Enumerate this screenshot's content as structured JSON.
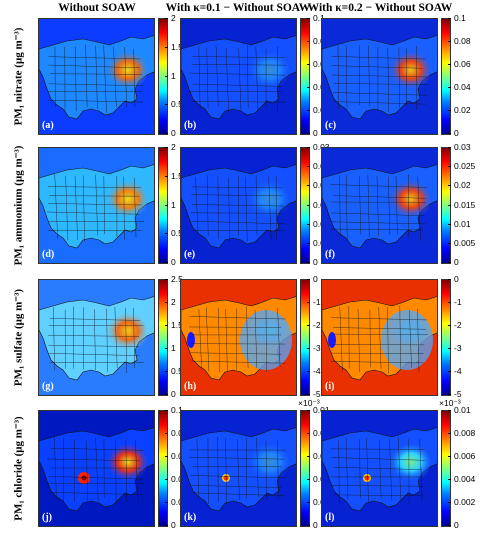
{
  "column_titles": [
    "Without SOAW",
    "With κ=0.1 − Without SOAW",
    "With κ=0.2 − Without SOAW"
  ],
  "row_labels": [
    "PM₁ nitrate (μg m⁻³)",
    "PM₁ ammonium (μg m⁻³)",
    "PM₁ sulfate (μg m⁻³)",
    "PM₁ chloride (μg m⁻³)"
  ],
  "panel_letters": [
    "(a)",
    "(b)",
    "(c)",
    "(d)",
    "(e)",
    "(f)",
    "(g)",
    "(h)",
    "(i)",
    "(j)",
    "(k)",
    "(l)"
  ],
  "colormap": "jet",
  "colorbars": [
    [
      {
        "ticks": [
          "2",
          "1.5",
          "1",
          "0.5",
          "0"
        ],
        "min": 0,
        "max": 2,
        "exponent": ""
      },
      {
        "ticks": [
          "0.1",
          "0.08",
          "0.06",
          "0.04",
          "0.02",
          "0"
        ],
        "min": 0,
        "max": 0.1,
        "exponent": ""
      },
      {
        "ticks": [
          "0.1",
          "0.08",
          "0.06",
          "0.04",
          "0.02",
          "0"
        ],
        "min": 0,
        "max": 0.1,
        "exponent": ""
      }
    ],
    [
      {
        "ticks": [
          "2",
          "1.5",
          "1",
          "0.5",
          "0"
        ],
        "min": 0,
        "max": 2,
        "exponent": ""
      },
      {
        "ticks": [
          "0.03",
          "0.025",
          "0.02",
          "0.015",
          "0.01",
          "0.005",
          "0"
        ],
        "min": 0,
        "max": 0.03,
        "exponent": ""
      },
      {
        "ticks": [
          "0.03",
          "0.025",
          "0.02",
          "0.015",
          "0.01",
          "0.005",
          "0"
        ],
        "min": 0,
        "max": 0.03,
        "exponent": ""
      }
    ],
    [
      {
        "ticks": [
          "2.5",
          "2",
          "1.5",
          "1",
          "0.5",
          "0"
        ],
        "min": 0,
        "max": 2.5,
        "exponent": ""
      },
      {
        "ticks": [
          "0",
          "-1",
          "-2",
          "-3",
          "-4",
          "-5"
        ],
        "min": -5,
        "max": 0,
        "exponent": "×10⁻³"
      },
      {
        "ticks": [
          "0",
          "-1",
          "-2",
          "-3",
          "-4",
          "-5"
        ],
        "min": -5,
        "max": 0,
        "exponent": "×10⁻³"
      }
    ],
    [
      {
        "ticks": [
          "0.1",
          "0.08",
          "0.06",
          "0.04",
          "0.02",
          "0"
        ],
        "min": 0,
        "max": 0.1,
        "exponent": ""
      },
      {
        "ticks": [
          "0.01",
          "0.008",
          "0.006",
          "0.004",
          "0.002",
          "0"
        ],
        "min": 0,
        "max": 0.01,
        "exponent": ""
      },
      {
        "ticks": [
          "0.01",
          "0.008",
          "0.006",
          "0.004",
          "0.002",
          "0"
        ],
        "min": 0,
        "max": 0.01,
        "exponent": ""
      }
    ]
  ],
  "chart_data": {
    "type": "heatmap",
    "title": "",
    "layout": "4 rows × 3 columns of map panels over North America",
    "columns": [
      "Without SOAW",
      "With κ=0.1 − Without SOAW",
      "With κ=0.2 − Without SOAW"
    ],
    "rows": [
      "PM₁ nitrate (μg m⁻³)",
      "PM₁ ammonium (μg m⁻³)",
      "PM₁ sulfate (μg m⁻³)",
      "PM₁ chloride (μg m⁻³)"
    ],
    "color_ranges": [
      [
        [
          0,
          2
        ],
        [
          0,
          0.1
        ],
        [
          0,
          0.1
        ]
      ],
      [
        [
          0,
          2
        ],
        [
          0,
          0.03
        ],
        [
          0,
          0.03
        ]
      ],
      [
        [
          0,
          2.5
        ],
        [
          -0.005,
          0
        ],
        [
          -0.005,
          0
        ]
      ],
      [
        [
          0,
          0.1
        ],
        [
          0,
          0.01
        ],
        [
          0,
          0.01
        ]
      ]
    ]
  }
}
